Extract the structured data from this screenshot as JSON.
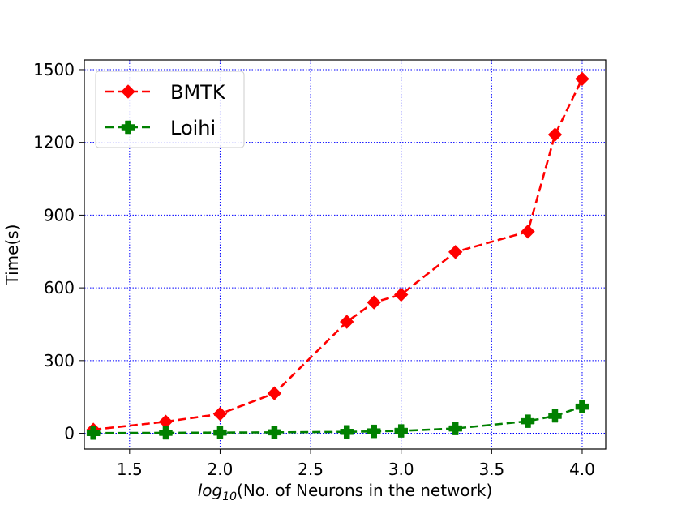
{
  "chart_data": {
    "type": "line",
    "title": "",
    "xlabel_prefix": "log",
    "xlabel_subscript": "10",
    "xlabel_rest": "(No. of Neurons in the network)",
    "ylabel": "Time(s)",
    "xlim": [
      1.25,
      4.13
    ],
    "ylim": [
      -65,
      1540
    ],
    "xticks": [
      1.5,
      2.0,
      2.5,
      3.0,
      3.5,
      4.0
    ],
    "xtick_labels": [
      "1.5",
      "2.0",
      "2.5",
      "3.0",
      "3.5",
      "4.0"
    ],
    "yticks": [
      0,
      300,
      600,
      900,
      1200,
      1500
    ],
    "ytick_labels": [
      "0",
      "300",
      "600",
      "900",
      "1200",
      "1500"
    ],
    "grid": true,
    "legend_position": "top-left",
    "x": [
      1.3,
      1.7,
      2.0,
      2.3,
      2.7,
      2.85,
      3.0,
      3.3,
      3.7,
      3.85,
      4.0
    ],
    "series": [
      {
        "name": "BMTK",
        "color": "#ff0000",
        "marker": "diamond",
        "linestyle": "dashed",
        "values": [
          15,
          48,
          80,
          165,
          460,
          540,
          572,
          748,
          832,
          1232,
          1462
        ]
      },
      {
        "name": "Loihi",
        "color": "#008000",
        "marker": "plus",
        "linestyle": "dashed",
        "values": [
          1,
          2,
          3,
          4,
          6,
          8,
          10,
          20,
          50,
          72,
          110
        ]
      }
    ],
    "grid_color": "#0000ff"
  }
}
